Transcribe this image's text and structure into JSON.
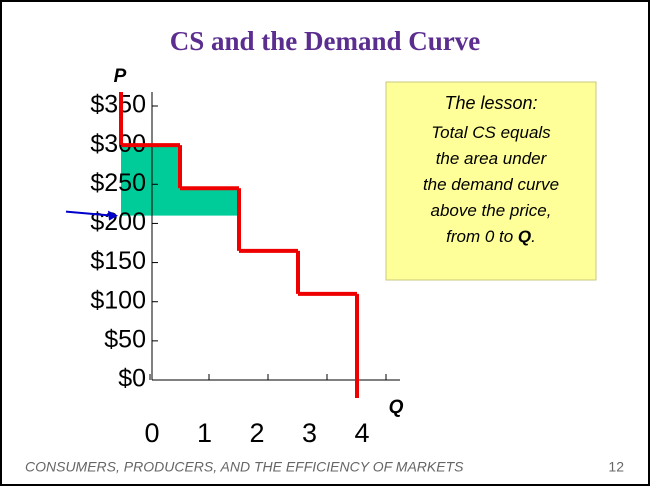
{
  "chart_data": {
    "type": "step",
    "title": "CS and the Demand Curve",
    "ylabel": "P",
    "xlabel": "Q",
    "ylim": [
      0,
      350
    ],
    "yticks": [
      {
        "value": 0,
        "label": "$0"
      },
      {
        "value": 50,
        "label": "$50"
      },
      {
        "value": 100,
        "label": "$100"
      },
      {
        "value": 150,
        "label": "$150"
      },
      {
        "value": 200,
        "label": "$200"
      },
      {
        "value": 250,
        "label": "$250"
      },
      {
        "value": 300,
        "label": "$300"
      },
      {
        "value": 350,
        "label": "$350"
      }
    ],
    "xlim": [
      0,
      4
    ],
    "xticks": [
      0,
      1,
      2,
      3,
      4
    ],
    "values": [
      300,
      245,
      165,
      110
    ],
    "price": 210,
    "cs_units": 2,
    "color": "#ee0000",
    "cs_color": "#00cc99",
    "price_color": "#0000cc",
    "annotation": {
      "heading": "The lesson:",
      "lines": [
        "Total CS equals",
        "the area under",
        "the demand curve",
        "above the price,",
        "from 0 to "
      ],
      "bold": "Q",
      "end": "."
    },
    "footer": "CONSUMERS, PRODUCERS, AND THE EFFICIENCY OF MARKETS",
    "page": "12"
  }
}
